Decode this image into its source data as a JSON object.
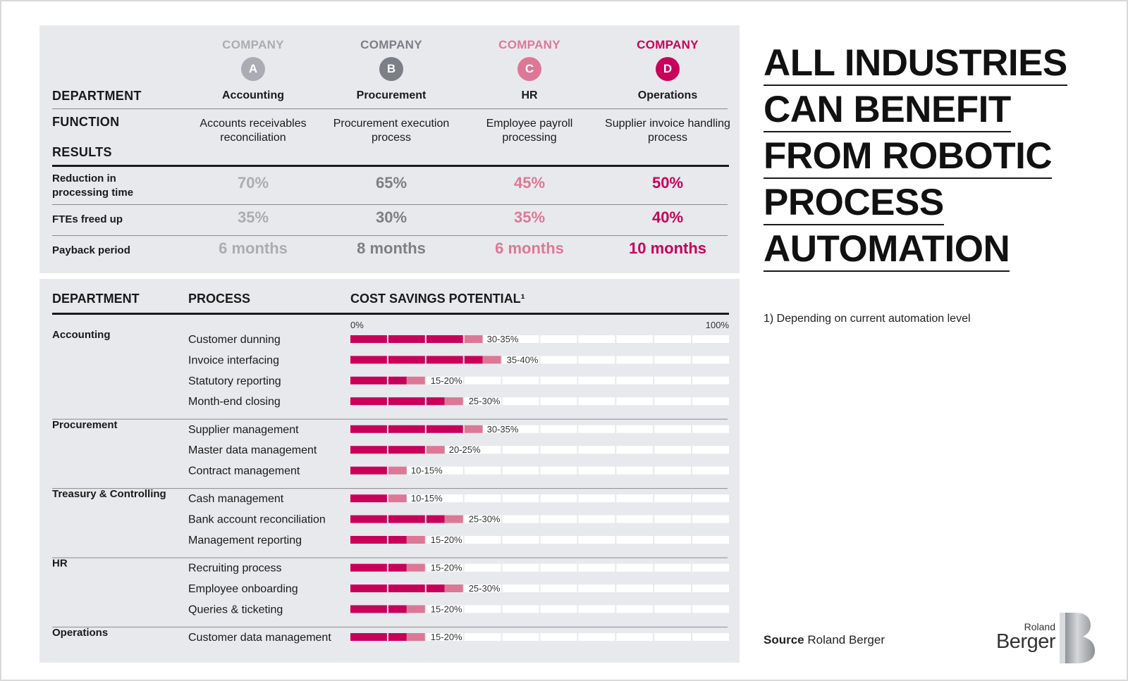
{
  "title_lines": [
    "ALL INDUSTRIES",
    "CAN BENEFIT",
    "FROM ROBOTIC",
    "PROCESS",
    "AUTOMATION"
  ],
  "footnote": "1) Depending on current automation level",
  "source_label": "Source",
  "source_name": "Roland Berger",
  "logo": {
    "line1": "Roland",
    "line2": "Berger",
    "mark": "B"
  },
  "top_table": {
    "row_labels": {
      "department": "DEPARTMENT",
      "function": "FUNCTION",
      "results": "RESULTS",
      "reduction": "Reduction in processing time",
      "ftes": "FTEs freed up",
      "payback": "Payback period"
    },
    "companies": [
      {
        "label": "COMPANY",
        "letter": "A",
        "color": "#a9adb3",
        "department": "Accounting",
        "function": "Accounts receivables reconciliation",
        "reduction": "70%",
        "ftes": "35%",
        "payback": "6 months"
      },
      {
        "label": "COMPANY",
        "letter": "B",
        "color": "#7b7f86",
        "department": "Procurement",
        "function": "Procurement execution process",
        "reduction": "65%",
        "ftes": "30%",
        "payback": "8 months"
      },
      {
        "label": "COMPANY",
        "letter": "C",
        "color": "#dc7896",
        "department": "HR",
        "function": "Employee payroll processing",
        "reduction": "45%",
        "ftes": "35%",
        "payback": "6 months"
      },
      {
        "label": "COMPANY",
        "letter": "D",
        "color": "#c8005a",
        "department": "Operations",
        "function": "Supplier invoice handling process",
        "reduction": "50%",
        "ftes": "40%",
        "payback": "10 months"
      }
    ]
  },
  "chart_data": {
    "type": "bar",
    "title": "COST SAVINGS POTENTIAL¹",
    "column_headers": {
      "department": "DEPARTMENT",
      "process": "PROCESS"
    },
    "axis": {
      "min_label": "0%",
      "max_label": "100%",
      "min": 0,
      "max": 100,
      "segments": 10
    },
    "colors": {
      "low": "#c8005a",
      "range": "#dc7896",
      "empty": "#ffffff"
    },
    "groups": [
      {
        "department": "Accounting",
        "items": [
          {
            "process": "Customer dunning",
            "low": 30,
            "high": 35,
            "label": "30-35%"
          },
          {
            "process": "Invoice interfacing",
            "low": 35,
            "high": 40,
            "label": "35-40%"
          },
          {
            "process": "Statutory reporting",
            "low": 15,
            "high": 20,
            "label": "15-20%"
          },
          {
            "process": "Month-end closing",
            "low": 25,
            "high": 30,
            "label": "25-30%"
          }
        ]
      },
      {
        "department": "Procurement",
        "items": [
          {
            "process": "Supplier management",
            "low": 30,
            "high": 35,
            "label": "30-35%"
          },
          {
            "process": "Master data management",
            "low": 20,
            "high": 25,
            "label": "20-25%"
          },
          {
            "process": "Contract management",
            "low": 10,
            "high": 15,
            "label": "10-15%"
          }
        ]
      },
      {
        "department": "Treasury & Controlling",
        "items": [
          {
            "process": "Cash management",
            "low": 10,
            "high": 15,
            "label": "10-15%"
          },
          {
            "process": "Bank account reconciliation",
            "low": 25,
            "high": 30,
            "label": "25-30%"
          },
          {
            "process": "Management reporting",
            "low": 15,
            "high": 20,
            "label": "15-20%"
          }
        ]
      },
      {
        "department": "HR",
        "items": [
          {
            "process": "Recruiting process",
            "low": 15,
            "high": 20,
            "label": "15-20%"
          },
          {
            "process": "Employee onboarding",
            "low": 25,
            "high": 30,
            "label": "25-30%"
          },
          {
            "process": "Queries & ticketing",
            "low": 15,
            "high": 20,
            "label": "15-20%"
          }
        ]
      },
      {
        "department": "Operations",
        "items": [
          {
            "process": "Customer data management",
            "low": 15,
            "high": 20,
            "label": "15-20%"
          }
        ]
      }
    ]
  }
}
